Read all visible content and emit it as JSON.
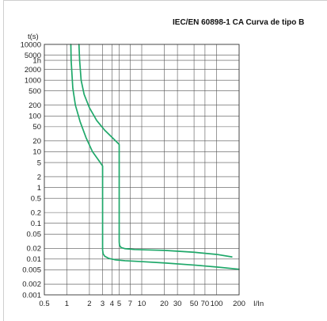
{
  "chart_data": {
    "type": "line",
    "title": "IEC/EN 60898-1 CA Curva de tipo B",
    "xlabel": "I/In",
    "ylabel": "t(s)",
    "xscale": "log",
    "yscale": "log",
    "xlim": [
      0.5,
      200
    ],
    "ylim": [
      0.001,
      10000
    ],
    "grid": true,
    "x_ticks": [
      0.5,
      1,
      2,
      3,
      4,
      5,
      7,
      10,
      20,
      30,
      50,
      70,
      100,
      200
    ],
    "x_tick_labels": [
      "0.5",
      "1",
      "2",
      "3",
      "4",
      "5",
      "7",
      "10",
      "20",
      "30",
      "50",
      "70",
      "100",
      "200"
    ],
    "y_ticks": [
      10000,
      5000,
      3600,
      2000,
      1000,
      500,
      200,
      100,
      50,
      20,
      10,
      5,
      2,
      1,
      0.5,
      0.2,
      0.1,
      0.05,
      0.02,
      0.01,
      0.005,
      0.002,
      0.001
    ],
    "y_tick_labels": [
      "10000",
      "5000",
      "1h",
      "2000",
      "1000",
      "500",
      "200",
      "100",
      "50",
      "20",
      "10",
      "5",
      "2",
      "1",
      "0.5",
      "0.2",
      "0.1",
      "0.05",
      "0.02",
      "0.01",
      "0.005",
      "0.002",
      "0.001"
    ],
    "series": [
      {
        "color": "#1fa86a",
        "x": [
          1.13,
          1.14,
          1.2,
          1.3,
          1.5,
          1.8,
          2.2,
          2.7,
          3.0,
          3.0,
          3.05,
          3.2,
          3.6,
          4.5,
          6,
          10,
          20,
          50,
          100,
          200
        ],
        "y": [
          10000,
          3600,
          600,
          200,
          70,
          25,
          10,
          5.5,
          4,
          0.018,
          0.014,
          0.012,
          0.0105,
          0.0095,
          0.009,
          0.0085,
          0.0078,
          0.0068,
          0.006,
          0.0052
        ]
      },
      {
        "color": "#1fa86a",
        "x": [
          1.45,
          1.48,
          1.55,
          1.7,
          2.0,
          2.5,
          3.2,
          4.2,
          5.0,
          5.0,
          5.05,
          5.3,
          6,
          8,
          12,
          20,
          50,
          100,
          160
        ],
        "y": [
          10000,
          3600,
          1000,
          400,
          170,
          75,
          40,
          23,
          16,
          0.03,
          0.024,
          0.021,
          0.0195,
          0.0185,
          0.018,
          0.0175,
          0.0155,
          0.0135,
          0.0115
        ]
      }
    ]
  }
}
